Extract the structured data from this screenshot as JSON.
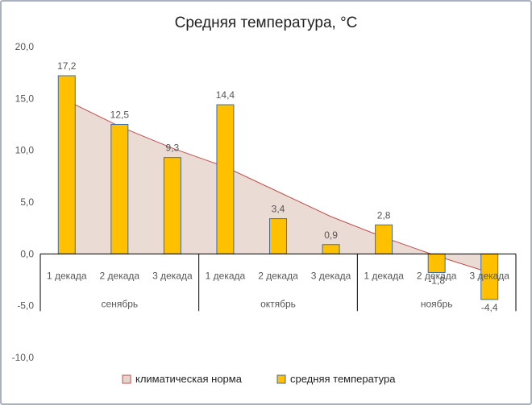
{
  "chart_data": {
    "type": "bar",
    "title": "Средняя  температура,  °С",
    "categories": [
      "1 декада",
      "2 декада",
      "3 декада",
      "1 декада",
      "2 декада",
      "3 декада",
      "1 декада",
      "2 декада",
      "3 декада"
    ],
    "groups": [
      {
        "label": "сенябрь",
        "span": 3
      },
      {
        "label": "октябрь",
        "span": 3
      },
      {
        "label": "ноябрь",
        "span": 3
      }
    ],
    "series": [
      {
        "name": "средняя температура",
        "type": "bar",
        "color": "#ffc000",
        "values": [
          17.2,
          12.5,
          9.3,
          14.4,
          3.4,
          0.9,
          2.8,
          -1.8,
          -4.4
        ],
        "labels": [
          "17,2",
          "12,5",
          "9,3",
          "14,4",
          "3,4",
          "0,9",
          "2,8",
          "-1,8",
          "-4,4"
        ]
      },
      {
        "name": "климатическая норма",
        "type": "area",
        "color": "#c0504d",
        "fill": "#e6d5cc",
        "values": [
          14.8,
          12.3,
          10.2,
          8.4,
          6.0,
          3.6,
          1.6,
          -0.2,
          -1.8
        ]
      }
    ],
    "ylim": [
      -10,
      20
    ],
    "yticks": [
      {
        "value": 20,
        "label": "20,0"
      },
      {
        "value": 15,
        "label": "15,0"
      },
      {
        "value": 10,
        "label": "10,0"
      },
      {
        "value": 5,
        "label": "5,0"
      },
      {
        "value": 0,
        "label": "0,0"
      },
      {
        "value": -5,
        "label": "-5,0"
      },
      {
        "value": -10,
        "label": "-10,0"
      }
    ],
    "grid": false,
    "legend": {
      "position": "bottom",
      "items": [
        {
          "label": "климатическая норма",
          "color": "#c0504d",
          "fill": "#e6d5cc"
        },
        {
          "label": "средняя температура",
          "color": "#ffc000"
        }
      ]
    }
  }
}
